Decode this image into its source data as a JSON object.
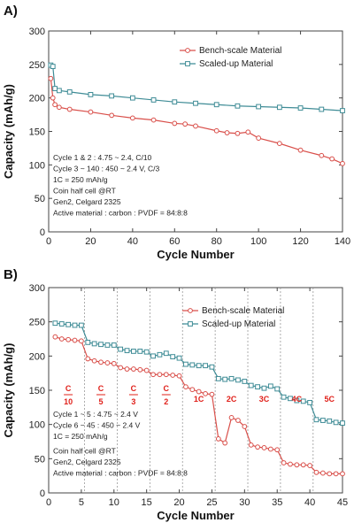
{
  "colors": {
    "bench": "#d94f4a",
    "scaled": "#3f8c96",
    "rate_label": "#e0201a"
  },
  "chart_data": [
    {
      "type": "line",
      "panel_label": "A)",
      "xlabel": "Cycle Number",
      "ylabel": "Capacity (mAh/g)",
      "xlim": [
        0,
        140
      ],
      "ylim": [
        0,
        300
      ],
      "xticks": [
        0,
        20,
        40,
        60,
        80,
        100,
        120,
        140
      ],
      "yticks": [
        0,
        50,
        100,
        150,
        200,
        250,
        300
      ],
      "grid": false,
      "legend_position": "top-right",
      "notes": [
        "Cycle 1 & 2 : 4.75 ~ 2.4, C/10",
        "Cycle 3 ~ 140 : 450 ~ 2.4 V, C/3",
        "1C = 250 mAh/g",
        "Coin half cell @RT",
        "Gen2, Celgard 2325",
        "Active material : carbon : PVDF = 84:8:8"
      ],
      "series": [
        {
          "name": "Bench-scale Material",
          "marker": "circle",
          "x": [
            1,
            2,
            3,
            5,
            10,
            20,
            30,
            40,
            50,
            60,
            65,
            70,
            80,
            85,
            90,
            95,
            100,
            110,
            120,
            130,
            135,
            140
          ],
          "values": [
            229,
            200,
            190,
            186,
            183,
            179,
            174,
            170,
            167,
            162,
            161,
            158,
            151,
            148,
            147,
            149,
            140,
            132,
            122,
            114,
            109,
            102
          ]
        },
        {
          "name": "Scaled-up Material",
          "marker": "square",
          "x": [
            1,
            2,
            3,
            5,
            10,
            20,
            30,
            40,
            50,
            60,
            70,
            80,
            90,
            100,
            110,
            120,
            130,
            140
          ],
          "values": [
            249,
            247,
            214,
            211,
            209,
            205,
            203,
            200,
            197,
            194,
            192,
            190,
            188,
            187,
            186,
            185,
            183,
            181
          ]
        }
      ]
    },
    {
      "type": "line",
      "panel_label": "B)",
      "xlabel": "Cycle Number",
      "ylabel": "Capacity (mAh/g)",
      "xlim": [
        0,
        45
      ],
      "ylim": [
        0,
        300
      ],
      "xticks": [
        0,
        5,
        10,
        15,
        20,
        25,
        30,
        35,
        40,
        45
      ],
      "yticks": [
        0,
        50,
        100,
        150,
        200,
        250,
        300
      ],
      "grid": false,
      "section_dividers": [
        5.5,
        10.5,
        15.5,
        20.5,
        25.5,
        30.5,
        35.5,
        40.5
      ],
      "legend_position": "top-right",
      "rate_labels": [
        {
          "text": "C",
          "sub": "10",
          "x": 3
        },
        {
          "text": "C",
          "sub": "5",
          "x": 8
        },
        {
          "text": "C",
          "sub": "3",
          "x": 13
        },
        {
          "text": "C",
          "sub": "2",
          "x": 18
        },
        {
          "text": "1C",
          "sub": "",
          "x": 23
        },
        {
          "text": "2C",
          "sub": "",
          "x": 28
        },
        {
          "text": "3C",
          "sub": "",
          "x": 33
        },
        {
          "text": "4C",
          "sub": "",
          "x": 38
        },
        {
          "text": "5C",
          "sub": "",
          "x": 43
        }
      ],
      "notes": [
        "Cycle 1 ~ 5 : 4.75 ~ 2.4 V",
        "Cycle 6 ~ 45 : 450 ~ 2.4 V",
        "1C = 250 mAh/g",
        "Coin half cell @RT",
        "Gen2, Celgard 2325",
        "Active material : carbon : PVDF = 84:8:8"
      ],
      "series": [
        {
          "name": "Bench-scale Material",
          "marker": "circle",
          "x": [
            1,
            2,
            3,
            4,
            5,
            6,
            7,
            8,
            9,
            10,
            11,
            12,
            13,
            14,
            15,
            16,
            17,
            18,
            19,
            20,
            21,
            22,
            23,
            24,
            25,
            26,
            27,
            28,
            29,
            30,
            31,
            32,
            33,
            34,
            35,
            36,
            37,
            38,
            39,
            40,
            41,
            42,
            43,
            44,
            45
          ],
          "values": [
            228,
            225,
            224,
            223,
            222,
            196,
            193,
            191,
            190,
            189,
            183,
            181,
            181,
            180,
            179,
            173,
            173,
            173,
            172,
            171,
            155,
            151,
            148,
            145,
            144,
            79,
            73,
            110,
            106,
            97,
            70,
            67,
            66,
            64,
            63,
            44,
            42,
            41,
            41,
            40,
            30,
            29,
            28,
            28,
            28
          ]
        },
        {
          "name": "Scaled-up Material",
          "marker": "square",
          "x": [
            1,
            2,
            3,
            4,
            5,
            6,
            7,
            8,
            9,
            10,
            11,
            12,
            13,
            14,
            15,
            16,
            17,
            18,
            19,
            20,
            21,
            22,
            23,
            24,
            25,
            26,
            27,
            28,
            29,
            30,
            31,
            32,
            33,
            34,
            35,
            36,
            37,
            38,
            39,
            40,
            41,
            42,
            43,
            44,
            45
          ],
          "values": [
            248,
            247,
            246,
            245,
            245,
            220,
            218,
            217,
            216,
            216,
            210,
            208,
            207,
            207,
            206,
            200,
            202,
            204,
            199,
            197,
            188,
            187,
            186,
            186,
            184,
            167,
            166,
            167,
            165,
            163,
            157,
            155,
            153,
            156,
            152,
            140,
            138,
            135,
            134,
            132,
            107,
            106,
            105,
            103,
            102
          ]
        }
      ]
    }
  ]
}
